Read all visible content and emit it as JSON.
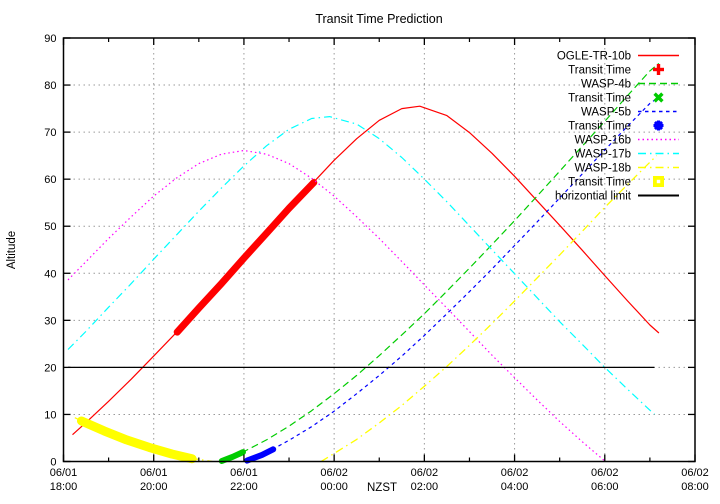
{
  "title": "Transit Time Prediction",
  "axes": {
    "x": {
      "label": "NZST",
      "major_ticks": [
        {
          "t": 0,
          "date": "06/01",
          "time": "18:00"
        },
        {
          "t": 2,
          "date": "06/01",
          "time": "20:00"
        },
        {
          "t": 4,
          "date": "06/01",
          "time": "22:00"
        },
        {
          "t": 6,
          "date": "06/02",
          "time": "00:00"
        },
        {
          "t": 8,
          "date": "06/02",
          "time": "02:00"
        },
        {
          "t": 10,
          "date": "06/02",
          "time": "04:00"
        },
        {
          "t": 12,
          "date": "06/02",
          "time": "06:00"
        },
        {
          "t": 14,
          "date": "06/02",
          "time": "08:00"
        }
      ],
      "minor_ticks": [
        1,
        3,
        5,
        7,
        9,
        11,
        13
      ],
      "range_hours_after_start": [
        0,
        14
      ]
    },
    "y": {
      "label": "Altitude",
      "major_ticks": [
        0,
        10,
        20,
        30,
        40,
        50,
        60,
        70,
        80,
        90
      ],
      "range": [
        0,
        90
      ]
    }
  },
  "colors": {
    "red": "#ff0000",
    "green": "#00cc00",
    "blue": "#0000ff",
    "magenta": "#ff00ff",
    "cyan": "#00ffff",
    "yellow": "#ffff00",
    "black": "#000000",
    "grid": "#9a9a9a",
    "background": "#ffffff"
  },
  "chart_data": {
    "type": "line",
    "title": "Transit Time Prediction",
    "xlabel": "NZST",
    "ylabel": "Altitude",
    "x_unit": "hours after 06/01 18:00 NZST",
    "xlim": [
      0,
      14
    ],
    "ylim": [
      0,
      90
    ],
    "grid": true,
    "legend_position": "top-right",
    "series": [
      {
        "name": "OGLE-TR-10b",
        "role": "altitude-curve",
        "color": "#ff0000",
        "dash": "solid",
        "width": 1.2,
        "segments": [
          [
            [
              0.2,
              5.7
            ],
            [
              0.5,
              8.3
            ],
            [
              1,
              12.8
            ],
            [
              1.5,
              17.5
            ],
            [
              2,
              22.4
            ],
            [
              2.5,
              27.4
            ],
            [
              3,
              32.6
            ],
            [
              3.5,
              37.8
            ],
            [
              4,
              43.2
            ],
            [
              4.5,
              48.5
            ],
            [
              5,
              53.8
            ],
            [
              5.5,
              58.9
            ],
            [
              6,
              64.0
            ],
            [
              6.5,
              68.6
            ],
            [
              7,
              72.5
            ],
            [
              7.5,
              75.0
            ],
            [
              7.9,
              75.5
            ],
            [
              8.5,
              73.5
            ],
            [
              9,
              69.9
            ],
            [
              9.5,
              65.5
            ],
            [
              10,
              60.6
            ],
            [
              10.5,
              55.4
            ],
            [
              11,
              50.2
            ],
            [
              11.5,
              44.9
            ],
            [
              12,
              39.5
            ],
            [
              12.5,
              34.2
            ],
            [
              13,
              29.0
            ],
            [
              13.2,
              27.3
            ]
          ]
        ]
      },
      {
        "name": "OGLE-TR-10b Transit Time",
        "role": "transit-band",
        "color": "#ff0000",
        "dash": "solid",
        "width": 7,
        "segments": [
          [
            [
              2.52,
              27.5
            ],
            [
              3,
              32.6
            ],
            [
              3.5,
              37.8
            ],
            [
              4,
              43.2
            ],
            [
              4.5,
              48.5
            ],
            [
              5,
              53.8
            ],
            [
              5.55,
              59.3
            ]
          ]
        ]
      },
      {
        "name": "WASP-4b",
        "role": "altitude-curve",
        "color": "#00cc00",
        "dash": "dash",
        "width": 1.2,
        "segments": [
          [
            [
              3.51,
              0
            ],
            [
              4,
              2.1
            ],
            [
              4.5,
              4.6
            ],
            [
              5,
              7.5
            ],
            [
              5.5,
              10.8
            ],
            [
              6,
              14.4
            ],
            [
              6.5,
              18.3
            ],
            [
              7,
              22.5
            ],
            [
              7.5,
              26.9
            ],
            [
              8,
              31.4
            ],
            [
              8.5,
              36.2
            ],
            [
              9,
              41.1
            ],
            [
              9.5,
              46.1
            ],
            [
              10,
              51.2
            ],
            [
              10.5,
              56.4
            ],
            [
              11,
              61.7
            ],
            [
              11.5,
              67.0
            ],
            [
              12,
              72.3
            ],
            [
              12.5,
              77.7
            ],
            [
              13,
              83.0
            ],
            [
              13.2,
              84.6
            ]
          ]
        ]
      },
      {
        "name": "WASP-4b Transit Time",
        "role": "transit-band",
        "color": "#00cc00",
        "dash": "solid",
        "width": 6,
        "segments": [
          [
            [
              3.51,
              0.1
            ],
            [
              3.75,
              1.0
            ],
            [
              3.98,
              2.0
            ]
          ]
        ]
      },
      {
        "name": "WASP-5b",
        "role": "altitude-curve",
        "color": "#0000ff",
        "dash": "dash-short",
        "width": 1.2,
        "segments": [
          [
            [
              4.07,
              0
            ],
            [
              4.5,
              1.9
            ],
            [
              5,
              4.5
            ],
            [
              5.5,
              7.4
            ],
            [
              6,
              10.7
            ],
            [
              6.5,
              14.4
            ],
            [
              7,
              18.3
            ],
            [
              7.5,
              22.4
            ],
            [
              8,
              26.8
            ],
            [
              8.5,
              31.4
            ],
            [
              9,
              36.1
            ],
            [
              9.5,
              40.9
            ],
            [
              10,
              45.9
            ],
            [
              10.5,
              50.9
            ],
            [
              11,
              56.0
            ],
            [
              11.5,
              61.1
            ],
            [
              12,
              66.2
            ],
            [
              12.5,
              71.2
            ],
            [
              13,
              76.1
            ],
            [
              13.2,
              77.4
            ]
          ]
        ]
      },
      {
        "name": "WASP-5b Transit Time",
        "role": "transit-band",
        "color": "#0000ff",
        "dash": "solid",
        "width": 6,
        "segments": [
          [
            [
              4.07,
              0.2
            ],
            [
              4.4,
              1.4
            ],
            [
              4.65,
              2.6
            ]
          ]
        ]
      },
      {
        "name": "WASP-16b",
        "role": "altitude-curve",
        "color": "#ff00ff",
        "dash": "dot",
        "width": 1.2,
        "segments": [
          [
            [
              0.1,
              38.6
            ],
            [
              0.5,
              42.5
            ],
            [
              1,
              47.4
            ],
            [
              1.5,
              52.0
            ],
            [
              2,
              56.4
            ],
            [
              2.5,
              60.2
            ],
            [
              3,
              63.3
            ],
            [
              3.5,
              65.3
            ],
            [
              4,
              66.1
            ],
            [
              4.5,
              65.3
            ],
            [
              5,
              63.3
            ],
            [
              5.5,
              60.2
            ],
            [
              6,
              56.4
            ],
            [
              6.5,
              52.0
            ],
            [
              7,
              47.4
            ],
            [
              7.5,
              42.5
            ],
            [
              8,
              37.5
            ],
            [
              8.5,
              32.6
            ],
            [
              9,
              27.6
            ],
            [
              9.5,
              22.6
            ],
            [
              10,
              17.8
            ],
            [
              10.5,
              13.1
            ],
            [
              11,
              8.5
            ],
            [
              11.5,
              4.2
            ],
            [
              12,
              0.1
            ]
          ]
        ]
      },
      {
        "name": "WASP-17b",
        "role": "altitude-curve",
        "color": "#00ffff",
        "dash": "dashdot",
        "width": 1.2,
        "segments": [
          [
            [
              0.1,
              23.8
            ],
            [
              0.5,
              27.7
            ],
            [
              1,
              32.8
            ],
            [
              1.5,
              37.8
            ],
            [
              2,
              43.0
            ],
            [
              2.5,
              48.1
            ],
            [
              3,
              53.2
            ],
            [
              3.5,
              58.1
            ],
            [
              4,
              62.8
            ],
            [
              4.5,
              67.1
            ],
            [
              5,
              70.6
            ],
            [
              5.5,
              72.9
            ],
            [
              5.9,
              73.3
            ],
            [
              6.5,
              71.7
            ],
            [
              7,
              68.6
            ],
            [
              7.5,
              64.6
            ],
            [
              8,
              60.0
            ],
            [
              8.5,
              55.2
            ],
            [
              9,
              50.1
            ],
            [
              9.5,
              45.0
            ],
            [
              10,
              39.9
            ],
            [
              10.5,
              34.8
            ],
            [
              11,
              29.7
            ],
            [
              11.5,
              24.9
            ],
            [
              12,
              20.0
            ],
            [
              12.5,
              15.4
            ],
            [
              13,
              10.9
            ],
            [
              13.1,
              10.1
            ]
          ]
        ]
      },
      {
        "name": "WASP-18b",
        "role": "altitude-curve",
        "color": "#ffff00",
        "dash": "dashdot",
        "width": 1.3,
        "segments": [
          [
            [
              0.25,
              9.3
            ],
            [
              0.75,
              7.1
            ],
            [
              1.25,
              5.1
            ],
            [
              1.75,
              3.4
            ],
            [
              2.25,
              2.0
            ],
            [
              2.75,
              0.8
            ],
            [
              3.3,
              0
            ]
          ],
          [
            [
              5.71,
              0
            ],
            [
              6,
              1.7
            ],
            [
              6.5,
              4.7
            ],
            [
              7,
              8.2
            ],
            [
              7.5,
              11.9
            ],
            [
              8,
              16.0
            ],
            [
              8.5,
              20.2
            ],
            [
              9,
              24.7
            ],
            [
              9.5,
              29.3
            ],
            [
              10,
              34.1
            ],
            [
              10.5,
              39.0
            ],
            [
              11,
              43.9
            ],
            [
              11.5,
              48.9
            ],
            [
              12,
              54.0
            ],
            [
              12.5,
              58.8
            ],
            [
              13,
              63.6
            ],
            [
              13.15,
              65.0
            ]
          ]
        ]
      },
      {
        "name": "WASP-18b Transit Time",
        "role": "transit-band",
        "color": "#ffff00",
        "dash": "solid",
        "width": 9,
        "segments": [
          [
            [
              0.4,
              8.6
            ],
            [
              0.9,
              6.5
            ],
            [
              1.4,
              4.6
            ],
            [
              1.9,
              3.0
            ],
            [
              2.4,
              1.6
            ],
            [
              2.85,
              0.6
            ]
          ]
        ]
      },
      {
        "name": "horizontial limit",
        "role": "limit-line",
        "color": "#000000",
        "dash": "solid",
        "width": 1.3,
        "segments": [
          [
            [
              0.1,
              20
            ],
            [
              13.1,
              20
            ]
          ]
        ]
      }
    ]
  },
  "legend": [
    {
      "label": "OGLE-TR-10b",
      "swatch": "line",
      "color": "#ff0000",
      "dash": "solid"
    },
    {
      "label": "Transit Time",
      "swatch": "marker",
      "color": "#ff0000",
      "marker": "plus"
    },
    {
      "label": "WASP-4b",
      "swatch": "line",
      "color": "#00cc00",
      "dash": "dash"
    },
    {
      "label": "Transit Time",
      "swatch": "marker",
      "color": "#00cc00",
      "marker": "cross"
    },
    {
      "label": "WASP-5b",
      "swatch": "line",
      "color": "#0000ff",
      "dash": "dash-short"
    },
    {
      "label": "Transit Time",
      "swatch": "marker",
      "color": "#0000ff",
      "marker": "asterisk"
    },
    {
      "label": "WASP-16b",
      "swatch": "line",
      "color": "#ff00ff",
      "dash": "dot"
    },
    {
      "label": "WASP-17b",
      "swatch": "line",
      "color": "#00ffff",
      "dash": "dashdot"
    },
    {
      "label": "WASP-18b",
      "swatch": "line",
      "color": "#ffff00",
      "dash": "dashdot"
    },
    {
      "label": "Transit Time",
      "swatch": "marker",
      "color": "#ffff00",
      "marker": "open-square"
    },
    {
      "label": "horizontial limit",
      "swatch": "line",
      "color": "#000000",
      "dash": "solid"
    }
  ]
}
